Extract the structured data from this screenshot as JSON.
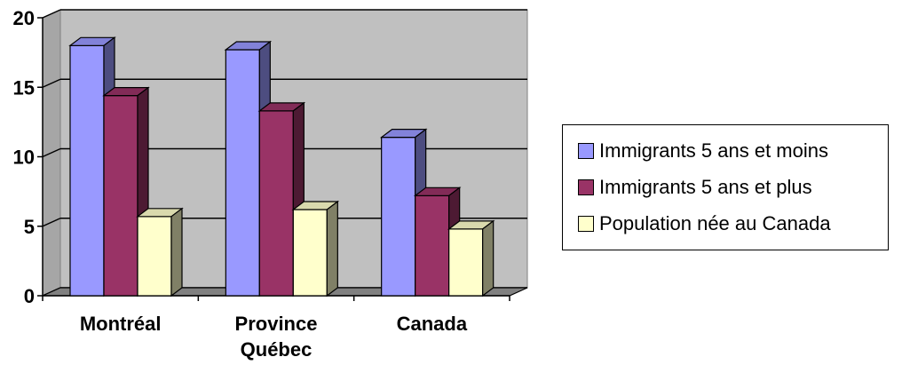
{
  "chart_data": {
    "type": "bar",
    "style": "3d-clustered-column",
    "categories": [
      [
        "Montréal"
      ],
      [
        "Province",
        "Québec"
      ],
      [
        "Canada"
      ]
    ],
    "series": [
      {
        "name": "Immigrants 5 ans et moins",
        "values": [
          18.0,
          17.7,
          11.4
        ],
        "color": "#9999FF"
      },
      {
        "name": "Immigrants 5 ans et plus",
        "values": [
          14.4,
          13.3,
          7.2
        ],
        "color": "#993366"
      },
      {
        "name": "Population née au Canada",
        "values": [
          5.7,
          6.2,
          4.8
        ],
        "color": "#FFFFCC"
      }
    ],
    "yticks": [
      0,
      5,
      10,
      15,
      20
    ],
    "ylim": [
      0,
      20
    ],
    "grid": true,
    "legend": "right",
    "title": "",
    "xlabel": "",
    "ylabel": "",
    "colors": {
      "wall": "#C0C0C0",
      "floor": "#808080",
      "gridline": "#000000"
    }
  }
}
